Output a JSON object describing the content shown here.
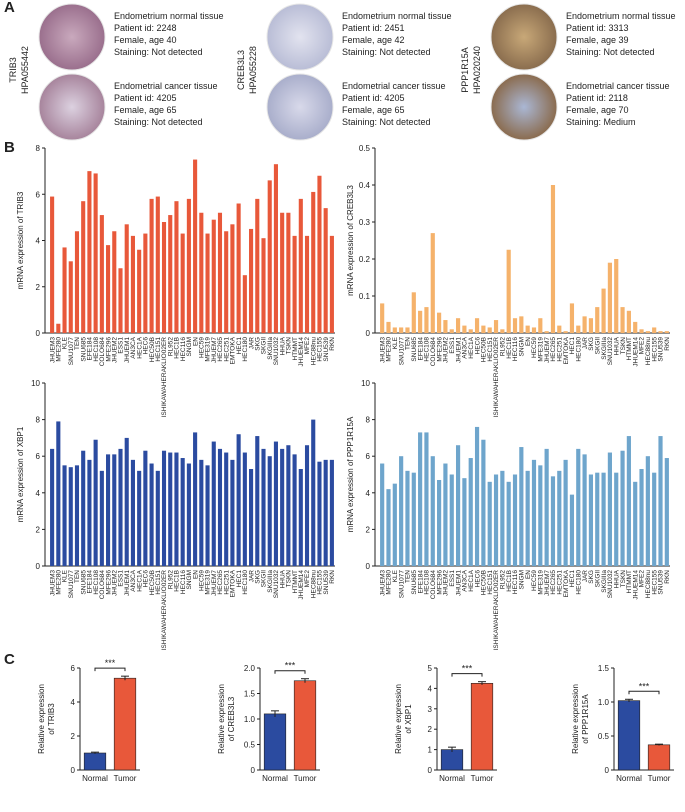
{
  "panel_labels": [
    "A",
    "B",
    "C"
  ],
  "staining": [
    {
      "gene": "TRIB3",
      "antibody": "HPA055442",
      "samples": [
        {
          "lines": [
            "Endometrium normal tissue",
            "Patient id: 2248",
            "Female, age 40",
            "Staining: Not detected"
          ]
        },
        {
          "lines": [
            "Endometrial cancer tissue",
            "Patient id: 4205",
            "Female, age 65",
            "Staining: Not detected"
          ]
        }
      ]
    },
    {
      "gene": "CREB3L3",
      "antibody": "HPA055228",
      "samples": [
        {
          "lines": [
            "Endometrium normal tissue",
            "Patient id: 2451",
            "Female, age 42",
            "Staining: Not detected"
          ]
        },
        {
          "lines": [
            "Endometrial cancer tissue",
            "Patient id: 4205",
            "Female, age 65",
            "Staining: Not detected"
          ]
        }
      ]
    },
    {
      "gene": "PPP1R15A",
      "antibody": "HPA020240",
      "samples": [
        {
          "lines": [
            "Endometrium normal tissue",
            "Patient id: 3313",
            "Female, age 39",
            "Staining: Not detected"
          ]
        },
        {
          "lines": [
            "Endometrial cancer tissue",
            "Patient id: 2118",
            "Female, age 70",
            "Staining: Medium"
          ]
        }
      ]
    }
  ],
  "chart_data": [
    {
      "type": "bar",
      "ylabel": "mRNA expression of TRIB3",
      "color": "#e8583a",
      "ylim": [
        0,
        8
      ],
      "yticks": [
        0,
        2,
        4,
        6,
        8
      ],
      "categories": [
        "JHUEM3",
        "MFE280",
        "KLE",
        "SNU1077",
        "TEN",
        "SNU685",
        "EFE184",
        "HEC108",
        "COLO684",
        "MFE296",
        "JHUEM2",
        "ESS1",
        "JHUEM1",
        "AN3CA",
        "HEC1A",
        "HEC6",
        "HEC50B",
        "HEC151",
        "ISHIKAWAHERAKLIO02ER",
        "RL952",
        "HEC1B",
        "HEC116",
        "SNGM",
        "EN",
        "HEC59",
        "MFE319",
        "JHUEM7",
        "HEC265",
        "HEC251",
        "EMTOKA",
        "HEC1",
        "HEC180",
        "JAR",
        "SKG",
        "SKGII",
        "SKGIIIa",
        "SNU1032",
        "HHUA",
        "TSKN",
        "HTMMT",
        "JHUEM14",
        "MFE2",
        "HEC88nu",
        "HEC155",
        "SNU539",
        "RKN"
      ],
      "values": [
        5.9,
        0.4,
        3.7,
        3.1,
        4.4,
        5.7,
        7.0,
        6.9,
        5.1,
        3.8,
        4.4,
        2.8,
        4.7,
        4.2,
        3.6,
        4.3,
        5.8,
        5.9,
        4.8,
        5.1,
        5.7,
        4.3,
        5.8,
        7.5,
        5.2,
        4.3,
        4.9,
        5.2,
        4.4,
        4.7,
        5.6,
        2.5,
        4.5,
        5.8,
        4.1,
        6.6,
        7.3,
        5.2,
        5.2,
        4.2,
        5.8,
        4.2,
        6.1,
        6.8,
        5.4,
        4.2
      ]
    },
    {
      "type": "bar",
      "ylabel": "mRNA expression of CREB3L3",
      "color": "#f5b26b",
      "ylim": [
        0,
        0.5
      ],
      "yticks": [
        0,
        0.1,
        0.2,
        0.3,
        0.4,
        0.5
      ],
      "categories": [
        "JHUEM3",
        "MFE280",
        "KLE",
        "SNU1077",
        "TEN",
        "SNU685",
        "EFE184",
        "HEC108",
        "COLO684",
        "MFE296",
        "JHUEM2",
        "ESS1",
        "JHUEM1",
        "AN3CA",
        "HEC1A",
        "HEC6",
        "HEC50B",
        "HEC151",
        "ISHIKAWAHERAKLIO02ER",
        "RL952",
        "HEC1B",
        "HEC116",
        "SNGM",
        "EN",
        "HEC59",
        "MFE319",
        "JHUEM7",
        "HEC265",
        "HEC251",
        "EMTOKA",
        "HEC1",
        "HEC180",
        "JAR",
        "SKG",
        "SKGII",
        "SKGIIIa",
        "SNU1032",
        "HHUA",
        "TSKN",
        "HTMMT",
        "JHUEM14",
        "MFE2",
        "HEC88nu",
        "HEC155",
        "SNU539",
        "RKN"
      ],
      "values": [
        0.08,
        0.03,
        0.015,
        0.015,
        0.015,
        0.11,
        0.06,
        0.07,
        0.27,
        0.055,
        0.035,
        0.01,
        0.04,
        0.02,
        0.01,
        0.04,
        0.02,
        0.015,
        0.035,
        0.01,
        0.225,
        0.04,
        0.045,
        0.02,
        0.015,
        0.04,
        0.005,
        0.4,
        0.02,
        0.005,
        0.08,
        0.02,
        0.045,
        0.04,
        0.07,
        0.12,
        0.19,
        0.2,
        0.07,
        0.06,
        0.03,
        0.01,
        0.005,
        0.015,
        0.005,
        0.005
      ]
    },
    {
      "type": "bar",
      "ylabel": "mRNA expression of XBP1",
      "color": "#2b4ba0",
      "ylim": [
        0,
        10
      ],
      "yticks": [
        0,
        2,
        4,
        6,
        8,
        10
      ],
      "categories": [
        "JHUEM3",
        "MFE280",
        "KLE",
        "SNU1077",
        "TEN",
        "SNU685",
        "EFE184",
        "HEC108",
        "COLO684",
        "MFE296",
        "JHUEM2",
        "ESS1",
        "JHUEM1",
        "AN3CA",
        "HEC1A",
        "HEC6",
        "HEC50B",
        "HEC151",
        "ISHIKAWAHERAKLIO02ER",
        "RL952",
        "HEC1B",
        "HEC116",
        "SNGM",
        "EN",
        "HEC59",
        "MFE319",
        "JHUEM7",
        "HEC265",
        "HEC251",
        "EMTOKA",
        "HEC1",
        "HEC180",
        "JAR",
        "SKG",
        "SKGII",
        "SKGIIIa",
        "SNU1032",
        "HHUA",
        "TSKN",
        "HTMMT",
        "JHUEM14",
        "MFE2",
        "HEC88nu",
        "HEC155",
        "SNU539",
        "RKN"
      ],
      "values": [
        6.4,
        7.9,
        5.5,
        5.4,
        5.5,
        6.3,
        5.8,
        6.9,
        5.2,
        6.1,
        6.1,
        6.4,
        7.0,
        5.8,
        5.2,
        6.3,
        5.6,
        5.2,
        6.3,
        6.2,
        6.2,
        5.9,
        5.6,
        7.3,
        5.8,
        5.5,
        6.8,
        6.4,
        6.2,
        5.8,
        7.2,
        6.2,
        5.3,
        7.1,
        6.4,
        6.0,
        6.8,
        6.4,
        6.6,
        6.1,
        5.3,
        6.6,
        8.0,
        5.7,
        5.8,
        5.8
      ]
    },
    {
      "type": "bar",
      "ylabel": "mRNA expression of PPP1R15A",
      "color": "#6ea5cc",
      "ylim": [
        0,
        10
      ],
      "yticks": [
        0,
        2,
        4,
        6,
        8,
        10
      ],
      "categories": [
        "JHUEM3",
        "MFE280",
        "KLE",
        "SNU1077",
        "TEN",
        "SNU685",
        "EFE184",
        "HEC108",
        "COLO684",
        "MFE296",
        "JHUEM2",
        "ESS1",
        "JHUEM1",
        "AN3CA",
        "HEC1A",
        "HEC6",
        "HEC50B",
        "HEC151",
        "ISHIKAWAHERAKLIO02ER",
        "RL952",
        "HEC1B",
        "HEC116",
        "SNGM",
        "EN",
        "HEC59",
        "MFE319",
        "JHUEM7",
        "HEC265",
        "HEC251",
        "EMTOKA",
        "HEC1",
        "HEC180",
        "JAR",
        "SKG",
        "SKGII",
        "SKGIIIa",
        "SNU1032",
        "HHUA",
        "TSKN",
        "HTMMT",
        "JHUEM14",
        "MFE2",
        "HEC88nu",
        "HEC155",
        "SNU539",
        "RKN"
      ],
      "values": [
        5.6,
        4.2,
        4.5,
        6.0,
        5.2,
        5.1,
        7.3,
        7.3,
        6.0,
        4.7,
        5.6,
        5.0,
        6.6,
        4.8,
        5.9,
        7.6,
        6.9,
        4.6,
        5.0,
        5.2,
        4.6,
        5.0,
        6.5,
        5.2,
        5.8,
        5.5,
        6.4,
        4.9,
        5.2,
        5.8,
        3.9,
        6.4,
        6.1,
        5.0,
        5.1,
        5.1,
        6.2,
        5.1,
        6.3,
        7.1,
        4.6,
        5.3,
        6.0,
        5.1,
        7.1,
        5.9
      ]
    },
    {
      "type": "bar_error",
      "ylabel": [
        "Relative expression",
        "of TRIB3"
      ],
      "categories": [
        "Normal",
        "Tumor"
      ],
      "values": [
        1.0,
        5.4
      ],
      "errors": [
        0.05,
        0.12
      ],
      "colors": [
        "#2b4ba0",
        "#e8583a"
      ],
      "ylim": [
        0,
        6
      ],
      "yticks": [
        0,
        2,
        4,
        6
      ],
      "annotation": "***"
    },
    {
      "type": "bar_error",
      "ylabel": [
        "Relative expression",
        "of CREB3L3"
      ],
      "categories": [
        "Normal",
        "Tumor"
      ],
      "values": [
        1.1,
        1.75
      ],
      "errors": [
        0.06,
        0.04
      ],
      "colors": [
        "#2b4ba0",
        "#e8583a"
      ],
      "ylim": [
        0,
        2
      ],
      "yticks": [
        0,
        0.5,
        {
          "value": 1,
          "label": "1.0"
        },
        1.5,
        {
          "value": 2,
          "label": "2.0"
        }
      ],
      "annotation": "***"
    },
    {
      "type": "bar_error",
      "ylabel": [
        "Relative expression",
        "of XBP1"
      ],
      "categories": [
        "Normal",
        "Tumor"
      ],
      "values": [
        1.0,
        4.25
      ],
      "errors": [
        0.12,
        0.08
      ],
      "colors": [
        "#2b4ba0",
        "#e8583a"
      ],
      "ylim": [
        0,
        5
      ],
      "yticks": [
        0,
        1,
        2,
        3,
        4,
        5
      ],
      "annotation": "***"
    },
    {
      "type": "bar_error",
      "ylabel": [
        "Relative expression",
        "of PPP1R15A"
      ],
      "categories": [
        "Normal",
        "Tumor"
      ],
      "values": [
        1.02,
        0.37
      ],
      "errors": [
        0.02,
        0.01
      ],
      "colors": [
        "#2b4ba0",
        "#e8583a"
      ],
      "ylim": [
        0,
        1.5
      ],
      "yticks": [
        0,
        0.5,
        {
          "value": 1,
          "label": "1.0"
        },
        1.5
      ],
      "annotation": "***"
    }
  ]
}
